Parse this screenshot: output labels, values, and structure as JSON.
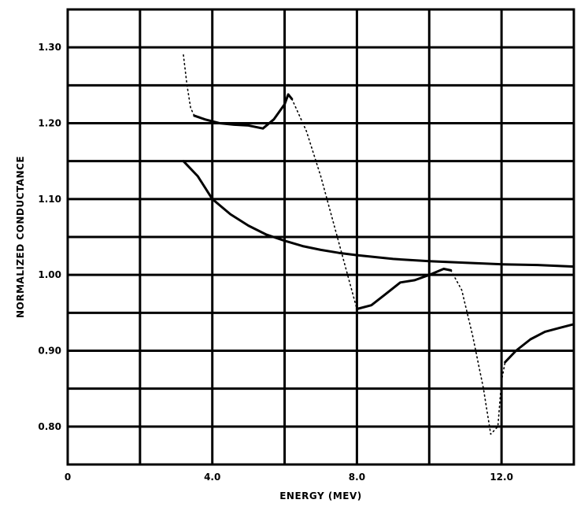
{
  "chart_data": {
    "type": "line",
    "xlabel": "ENERGY (MEV)",
    "ylabel": "NORMALIZED CONDUCTANCE",
    "xlim": [
      0,
      14
    ],
    "ylim": [
      0.75,
      1.35
    ],
    "xticks": [
      {
        "value": 0,
        "label": "0"
      },
      {
        "value": 4,
        "label": "4.0"
      },
      {
        "value": 8,
        "label": "8.0"
      },
      {
        "value": 12,
        "label": "12.0"
      }
    ],
    "yticks": [
      {
        "value": 0.8,
        "label": "0.80"
      },
      {
        "value": 0.9,
        "label": "0.90"
      },
      {
        "value": 1.0,
        "label": "1.00"
      },
      {
        "value": 1.1,
        "label": "1.10"
      },
      {
        "value": 1.2,
        "label": "1.20"
      },
      {
        "value": 1.3,
        "label": "1.30"
      }
    ],
    "x_grid_step": 2,
    "y_grid_step": 0.05,
    "grid": true,
    "series": [
      {
        "style": "solid",
        "points": [
          [
            3.2,
            1.15
          ],
          [
            3.6,
            1.13
          ],
          [
            4.0,
            1.1
          ],
          [
            4.5,
            1.08
          ],
          [
            5.0,
            1.065
          ],
          [
            5.5,
            1.053
          ],
          [
            6.0,
            1.045
          ],
          [
            6.5,
            1.038
          ],
          [
            7.0,
            1.033
          ],
          [
            7.5,
            1.029
          ],
          [
            8.0,
            1.026
          ],
          [
            9.0,
            1.021
          ],
          [
            10.0,
            1.018
          ],
          [
            11.0,
            1.016
          ],
          [
            12.0,
            1.014
          ],
          [
            13.0,
            1.013
          ],
          [
            14.0,
            1.011
          ]
        ]
      },
      {
        "style": "solid",
        "points": [
          [
            3.5,
            1.21
          ],
          [
            3.8,
            1.205
          ],
          [
            4.2,
            1.2
          ],
          [
            4.6,
            1.198
          ],
          [
            5.0,
            1.197
          ],
          [
            5.4,
            1.193
          ],
          [
            5.7,
            1.205
          ],
          [
            6.0,
            1.225
          ],
          [
            6.1,
            1.238
          ],
          [
            6.2,
            1.232
          ]
        ]
      },
      {
        "style": "dotted",
        "points": [
          [
            6.2,
            1.232
          ],
          [
            6.6,
            1.19
          ],
          [
            7.0,
            1.13
          ],
          [
            7.4,
            1.06
          ],
          [
            7.8,
            0.99
          ],
          [
            8.0,
            0.955
          ]
        ]
      },
      {
        "style": "solid",
        "points": [
          [
            8.0,
            0.955
          ],
          [
            8.4,
            0.96
          ],
          [
            8.8,
            0.975
          ],
          [
            9.2,
            0.99
          ],
          [
            9.6,
            0.993
          ],
          [
            10.0,
            1.0
          ],
          [
            10.4,
            1.008
          ],
          [
            10.6,
            1.006
          ]
        ]
      },
      {
        "style": "dotted",
        "points": [
          [
            10.6,
            1.006
          ],
          [
            10.9,
            0.98
          ],
          [
            11.2,
            0.92
          ],
          [
            11.5,
            0.85
          ],
          [
            11.7,
            0.79
          ],
          [
            11.9,
            0.8
          ],
          [
            12.0,
            0.86
          ],
          [
            12.1,
            0.885
          ]
        ]
      },
      {
        "style": "solid",
        "points": [
          [
            12.1,
            0.885
          ],
          [
            12.4,
            0.9
          ],
          [
            12.8,
            0.915
          ],
          [
            13.2,
            0.925
          ],
          [
            13.6,
            0.93
          ],
          [
            14.0,
            0.935
          ]
        ]
      },
      {
        "style": "dotted",
        "points": [
          [
            3.2,
            1.29
          ],
          [
            3.3,
            1.25
          ],
          [
            3.4,
            1.22
          ],
          [
            3.5,
            1.21
          ]
        ]
      }
    ]
  }
}
